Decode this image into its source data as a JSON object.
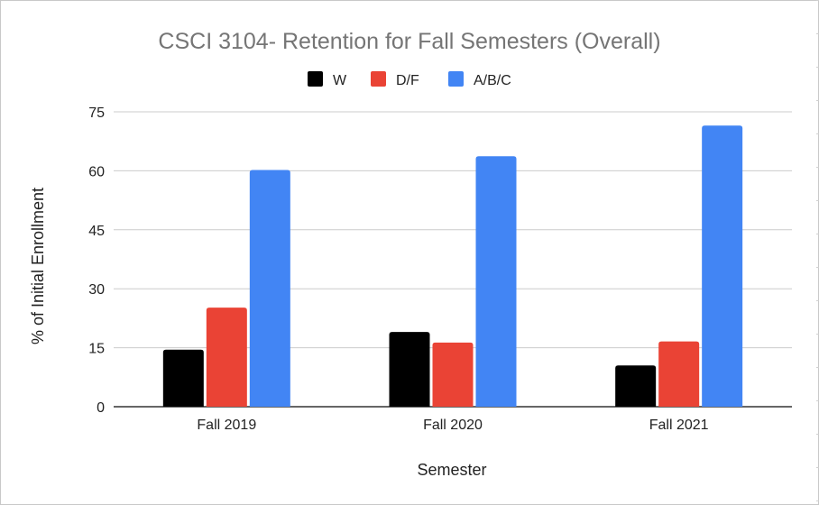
{
  "chart_data": {
    "type": "bar",
    "title": "CSCI 3104- Retention for Fall Semesters (Overall)",
    "xlabel": "Semester",
    "ylabel": "% of Initial Enrollment",
    "categories": [
      "Fall 2019",
      "Fall 2020",
      "Fall 2021"
    ],
    "series": [
      {
        "name": "W",
        "values": [
          14.5,
          19,
          10.5
        ],
        "color": "#000000"
      },
      {
        "name": "D/F",
        "values": [
          25.2,
          16.3,
          16.6
        ],
        "color": "#ea4335"
      },
      {
        "name": "A/B/C",
        "values": [
          60.2,
          63.7,
          71.5
        ],
        "color": "#4285f4"
      }
    ],
    "ylim": [
      0,
      75
    ],
    "yticks": [
      "0",
      "15",
      "30",
      "45",
      "60",
      "75"
    ],
    "grid": true,
    "legend": "top-center"
  }
}
